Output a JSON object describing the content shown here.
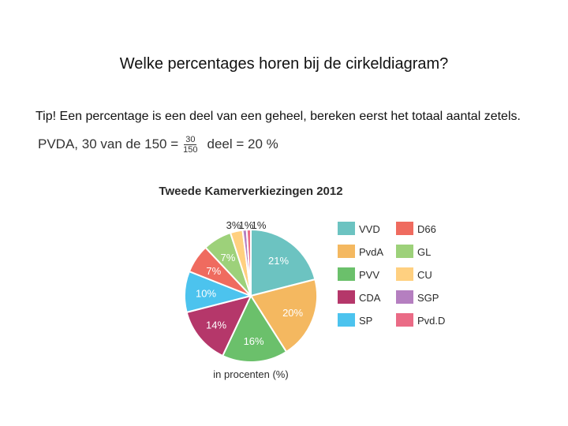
{
  "slide": {
    "title": "Welke percentages horen bij de cirkeldiagram?",
    "tip": "Tip! Een percentage is een deel van een geheel, bereken eerst het totaal aantal zetels.",
    "formula": {
      "left": "PVDA, 30 van de 150 =",
      "numerator": "30",
      "denominator": "150",
      "right": "deel = 20 %"
    }
  },
  "chart_data": {
    "type": "pie",
    "title": "Tweede Kamerverkiezingen 2012",
    "xlabel": "in procenten (%)",
    "legend_position": "right",
    "slices": [
      {
        "name": "VVD",
        "value": 21,
        "label": "21%",
        "color": "#6cc3c1"
      },
      {
        "name": "PvdA",
        "value": 20,
        "label": "20%",
        "color": "#f4b860"
      },
      {
        "name": "PVV",
        "value": 16,
        "label": "16%",
        "color": "#6bc06b"
      },
      {
        "name": "CDA",
        "value": 14,
        "label": "14%",
        "color": "#b5376a"
      },
      {
        "name": "SP",
        "value": 10,
        "label": "10%",
        "color": "#4cc3ee"
      },
      {
        "name": "D66",
        "value": 7,
        "label": "7%",
        "color": "#ef6b5f"
      },
      {
        "name": "GL",
        "value": 7,
        "label": "7%",
        "color": "#9dd17a"
      },
      {
        "name": "CU",
        "value": 3,
        "label": "3%",
        "color": "#ffd080"
      },
      {
        "name": "SGP",
        "value": 1,
        "label": "1%",
        "color": "#b57fc0"
      },
      {
        "name": "Pvd.D",
        "value": 1,
        "label": "1%",
        "color": "#ea6b86"
      }
    ],
    "legend": [
      [
        "VVD",
        "D66"
      ],
      [
        "PvdA",
        "GL"
      ],
      [
        "PVV",
        "CU"
      ],
      [
        "CDA",
        "SGP"
      ],
      [
        "SP",
        "Pvd.D"
      ]
    ]
  }
}
